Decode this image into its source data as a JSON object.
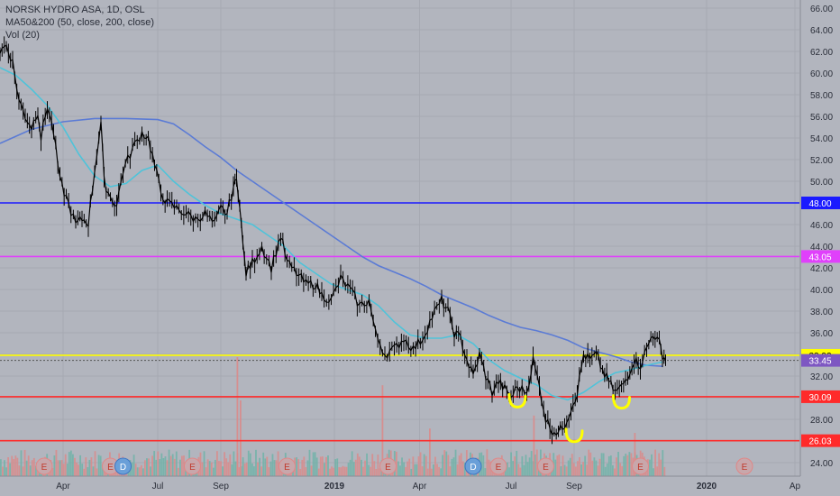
{
  "legend": {
    "symbol": "NORSK HYDRO ASA, 1D, OSL",
    "ma": "MA50&200 (50, close, 200, close)",
    "vol": "Vol (20)"
  },
  "chart_data": {
    "type": "candlestick",
    "symbol": "NORSK HYDRO ASA",
    "interval": "1D",
    "exchange": "OSL",
    "colors": {
      "background": "#b2b5be",
      "price": "#000000",
      "ma50": "#4fc3d9",
      "ma200": "#5b7bd5",
      "vol_up": "#6fb3a8",
      "vol_down": "#d98b8b",
      "axis_text": "#2a2e39"
    },
    "y_axis": {
      "min": 23,
      "max": 67,
      "ticks": [
        "24.00",
        "26.00",
        "28.00",
        "30.00",
        "32.00",
        "34.00",
        "36.00",
        "38.00",
        "40.00",
        "42.00",
        "44.00",
        "46.00",
        "48.00",
        "50.00",
        "52.00",
        "54.00",
        "56.00",
        "58.00",
        "60.00",
        "62.00",
        "64.00",
        "66.00"
      ],
      "side": "right"
    },
    "x_axis": {
      "ticks": [
        {
          "label": "Apr",
          "x": 2.0
        },
        {
          "label": "Jul",
          "x": 5.0
        },
        {
          "label": "Sep",
          "x": 7.0
        },
        {
          "label": "2019",
          "x": 10.6
        },
        {
          "label": "Apr",
          "x": 13.3
        },
        {
          "label": "Jul",
          "x": 16.2
        },
        {
          "label": "Sep",
          "x": 18.2
        },
        {
          "label": "2020",
          "x": 22.4
        },
        {
          "label": "Ap",
          "x": 25.2
        }
      ]
    },
    "horizontal_levels": [
      {
        "value": 48.0,
        "label": "48.00",
        "color": "#1a1aff"
      },
      {
        "value": 43.05,
        "label": "43.05",
        "color": "#e040fb"
      },
      {
        "value": 33.92,
        "label": "33.92",
        "color": "#ffff00"
      },
      {
        "value": 30.09,
        "label": "30.09",
        "color": "#ff2a2a"
      },
      {
        "value": 26.03,
        "label": "26.03",
        "color": "#ff2a2a"
      }
    ],
    "last_price": {
      "value": 33.45,
      "label": "33.45",
      "color": "#7e57c2"
    },
    "price_path": [
      [
        0,
        62.0
      ],
      [
        0.2,
        62.6
      ],
      [
        0.4,
        61.0
      ],
      [
        0.6,
        57.5
      ],
      [
        0.8,
        56.0
      ],
      [
        1.0,
        55.0
      ],
      [
        1.2,
        56.5
      ],
      [
        1.3,
        54.0
      ],
      [
        1.5,
        57.0
      ],
      [
        1.7,
        54.5
      ],
      [
        1.9,
        50.0
      ],
      [
        2.1,
        48.5
      ],
      [
        2.4,
        46.0
      ],
      [
        2.6,
        46.5
      ],
      [
        2.8,
        46.2
      ],
      [
        3.0,
        51.0
      ],
      [
        3.2,
        55.5
      ],
      [
        3.3,
        50.0
      ],
      [
        3.5,
        48.5
      ],
      [
        3.7,
        47.8
      ],
      [
        3.9,
        51.0
      ],
      [
        4.2,
        53.0
      ],
      [
        4.5,
        54.5
      ],
      [
        4.7,
        54.0
      ],
      [
        4.9,
        51.5
      ],
      [
        5.1,
        49.0
      ],
      [
        5.3,
        48.0
      ],
      [
        5.6,
        47.5
      ],
      [
        5.9,
        47.0
      ],
      [
        6.2,
        46.5
      ],
      [
        6.5,
        47.0
      ],
      [
        6.8,
        46.0
      ],
      [
        7.0,
        47.5
      ],
      [
        7.2,
        47.0
      ],
      [
        7.4,
        49.5
      ],
      [
        7.5,
        50.0
      ],
      [
        7.6,
        48.0
      ],
      [
        7.7,
        44.0
      ],
      [
        7.8,
        41.5
      ],
      [
        8.0,
        42.5
      ],
      [
        8.3,
        44.0
      ],
      [
        8.6,
        42.0
      ],
      [
        8.9,
        45.0
      ],
      [
        9.1,
        42.5
      ],
      [
        9.4,
        41.5
      ],
      [
        9.7,
        40.5
      ],
      [
        10.0,
        40.5
      ],
      [
        10.2,
        39.5
      ],
      [
        10.5,
        39.0
      ],
      [
        10.8,
        41.0
      ],
      [
        11.1,
        40.0
      ],
      [
        11.4,
        38.5
      ],
      [
        11.7,
        39.0
      ],
      [
        11.9,
        36.0
      ],
      [
        12.2,
        34.0
      ],
      [
        12.5,
        34.5
      ],
      [
        12.8,
        35.5
      ],
      [
        13.1,
        34.5
      ],
      [
        13.4,
        35.5
      ],
      [
        13.7,
        37.5
      ],
      [
        14.0,
        39.0
      ],
      [
        14.2,
        38.0
      ],
      [
        14.4,
        36.0
      ],
      [
        14.6,
        35.5
      ],
      [
        14.8,
        33.5
      ],
      [
        15.0,
        32.0
      ],
      [
        15.2,
        34.0
      ],
      [
        15.4,
        32.0
      ],
      [
        15.6,
        30.5
      ],
      [
        15.8,
        31.5
      ],
      [
        16.0,
        30.8
      ],
      [
        16.2,
        30.0
      ],
      [
        16.4,
        31.0
      ],
      [
        16.7,
        30.5
      ],
      [
        16.9,
        33.5
      ],
      [
        17.1,
        31.0
      ],
      [
        17.3,
        28.0
      ],
      [
        17.5,
        27.0
      ],
      [
        17.7,
        26.8
      ],
      [
        17.9,
        27.5
      ],
      [
        18.1,
        29.0
      ],
      [
        18.3,
        30.5
      ],
      [
        18.5,
        34.0
      ],
      [
        18.7,
        33.5
      ],
      [
        18.9,
        34.0
      ],
      [
        19.1,
        32.5
      ],
      [
        19.3,
        31.5
      ],
      [
        19.5,
        30.5
      ],
      [
        19.7,
        31.0
      ],
      [
        19.9,
        32.0
      ],
      [
        20.1,
        33.5
      ],
      [
        20.3,
        33.0
      ],
      [
        20.5,
        34.5
      ],
      [
        20.7,
        36.0
      ],
      [
        20.9,
        35.0
      ],
      [
        21.0,
        34.0
      ],
      [
        21.1,
        33.45
      ]
    ],
    "ma50_path": [
      [
        0,
        60.5
      ],
      [
        0.5,
        59.8
      ],
      [
        1.0,
        58.5
      ],
      [
        1.5,
        57.0
      ],
      [
        2.0,
        55.0
      ],
      [
        2.5,
        52.5
      ],
      [
        3.0,
        50.5
      ],
      [
        3.5,
        49.5
      ],
      [
        4.0,
        49.8
      ],
      [
        4.5,
        51.0
      ],
      [
        5.0,
        51.5
      ],
      [
        5.5,
        50.0
      ],
      [
        6.0,
        48.8
      ],
      [
        6.5,
        47.8
      ],
      [
        7.0,
        47.0
      ],
      [
        7.5,
        46.5
      ],
      [
        8.0,
        46.0
      ],
      [
        8.5,
        45.0
      ],
      [
        9.0,
        44.0
      ],
      [
        9.5,
        42.5
      ],
      [
        10.0,
        41.5
      ],
      [
        10.5,
        40.5
      ],
      [
        11.0,
        40.0
      ],
      [
        11.5,
        39.5
      ],
      [
        12.0,
        38.5
      ],
      [
        12.5,
        37.0
      ],
      [
        13.0,
        35.8
      ],
      [
        13.5,
        35.5
      ],
      [
        14.0,
        35.5
      ],
      [
        14.5,
        35.8
      ],
      [
        15.0,
        35.0
      ],
      [
        15.5,
        33.5
      ],
      [
        16.0,
        32.5
      ],
      [
        16.5,
        31.8
      ],
      [
        17.0,
        31.2
      ],
      [
        17.5,
        30.2
      ],
      [
        18.0,
        29.8
      ],
      [
        18.5,
        30.5
      ],
      [
        19.0,
        31.5
      ],
      [
        19.5,
        32.3
      ],
      [
        20.0,
        32.6
      ],
      [
        20.5,
        33.0
      ],
      [
        21.0,
        33.3
      ]
    ],
    "ma200_path": [
      [
        0,
        53.5
      ],
      [
        1.0,
        54.8
      ],
      [
        2.0,
        55.5
      ],
      [
        3.0,
        55.8
      ],
      [
        4.0,
        55.8
      ],
      [
        5.0,
        55.7
      ],
      [
        5.5,
        55.3
      ],
      [
        6.0,
        54.3
      ],
      [
        6.5,
        53.2
      ],
      [
        7.0,
        52.2
      ],
      [
        7.5,
        51.0
      ],
      [
        8.0,
        50.0
      ],
      [
        8.5,
        49.0
      ],
      [
        9.0,
        48.0
      ],
      [
        9.5,
        47.0
      ],
      [
        10.0,
        46.0
      ],
      [
        10.5,
        45.0
      ],
      [
        11.0,
        44.0
      ],
      [
        11.5,
        43.0
      ],
      [
        12.0,
        42.2
      ],
      [
        12.5,
        41.6
      ],
      [
        13.0,
        41.0
      ],
      [
        13.5,
        40.3
      ],
      [
        14.0,
        39.5
      ],
      [
        14.5,
        38.9
      ],
      [
        15.0,
        38.3
      ],
      [
        15.5,
        37.6
      ],
      [
        16.0,
        37.0
      ],
      [
        16.5,
        36.5
      ],
      [
        17.0,
        36.2
      ],
      [
        17.5,
        35.8
      ],
      [
        18.0,
        35.3
      ],
      [
        18.5,
        34.6
      ],
      [
        19.0,
        34.2
      ],
      [
        19.5,
        33.8
      ],
      [
        20.0,
        33.3
      ],
      [
        20.5,
        33.0
      ],
      [
        21.0,
        32.9
      ]
    ],
    "volume": {
      "bars": 120,
      "spikes": [
        [
          7.5,
          0.55
        ],
        [
          7.6,
          0.35
        ],
        [
          12.1,
          0.42
        ],
        [
          13.6,
          0.22
        ],
        [
          16.9,
          0.28
        ],
        [
          20.1,
          0.2
        ]
      ]
    },
    "event_markers": [
      {
        "type": "E",
        "x": 1.4
      },
      {
        "type": "E",
        "x": 3.5
      },
      {
        "type": "D",
        "x": 3.9
      },
      {
        "type": "E",
        "x": 6.1
      },
      {
        "type": "E",
        "x": 9.1
      },
      {
        "type": "E",
        "x": 12.3
      },
      {
        "type": "D",
        "x": 15.0
      },
      {
        "type": "E",
        "x": 15.8
      },
      {
        "type": "E",
        "x": 17.3
      },
      {
        "type": "E",
        "x": 20.3
      },
      {
        "type": "E",
        "x": 23.6
      }
    ],
    "annotations": [
      {
        "shape": "smile",
        "x": 16.4,
        "y": 29.8,
        "color": "#ffff00"
      },
      {
        "shape": "smile",
        "x": 18.2,
        "y": 26.6,
        "color": "#ffff00"
      },
      {
        "shape": "smile",
        "x": 19.7,
        "y": 29.7,
        "color": "#ffff00"
      }
    ]
  }
}
